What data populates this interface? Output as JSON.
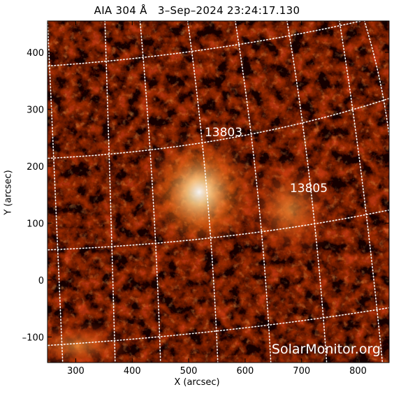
{
  "title": "AIA 304 Å   3–Sep–2024 23:24:17.130",
  "axes": {
    "xlabel": "X (arcsec)",
    "ylabel": "Y (arcsec)",
    "x_ticks": [
      "300",
      "400",
      "500",
      "600",
      "700",
      "800"
    ],
    "y_ticks": [
      "400",
      "300",
      "200",
      "100",
      "0",
      "–100"
    ],
    "xlim": [
      250,
      855
    ],
    "ylim": [
      -145,
      455
    ]
  },
  "regions": [
    {
      "label": "13803"
    },
    {
      "label": "13805"
    }
  ],
  "watermark": "SolarMonitor.org",
  "colors": {
    "background": "#000000",
    "solar_dark": "#150300",
    "solar_mid": "#b02e05",
    "solar_bright": "#ffb15a",
    "grid": "#ffffff"
  }
}
